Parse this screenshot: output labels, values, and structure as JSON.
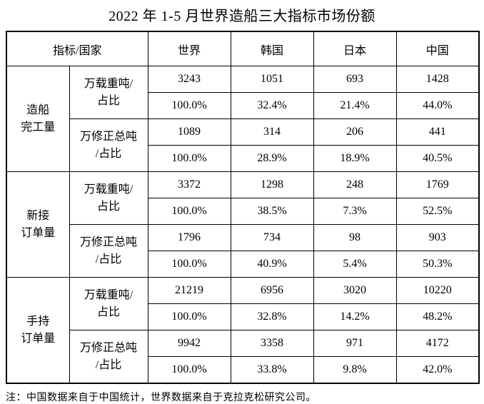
{
  "title": "2022 年 1-5 月世界造船三大指标市场份额",
  "note": "注：中国数据来自于中国统计，世界数据来自于克拉克松研究公司。",
  "colors": {
    "border": "#000000",
    "text": "#000000",
    "background": "#ffffff"
  },
  "table": {
    "corner_header": "指标/国家",
    "columns": [
      "世界",
      "韩国",
      "日本",
      "中国"
    ],
    "sections": [
      {
        "label1": "造船",
        "label2": "完工量",
        "metrics": [
          {
            "label1": "万载重吨/",
            "label2": "占比",
            "values": [
              "3243",
              "1051",
              "693",
              "1428"
            ],
            "shares": [
              "100.0%",
              "32.4%",
              "21.4%",
              "44.0%"
            ]
          },
          {
            "label1": "万修正总吨",
            "label2": "/占比",
            "values": [
              "1089",
              "314",
              "206",
              "441"
            ],
            "shares": [
              "100.0%",
              "28.9%",
              "18.9%",
              "40.5%"
            ]
          }
        ]
      },
      {
        "label1": "新接",
        "label2": "订单量",
        "metrics": [
          {
            "label1": "万载重吨/",
            "label2": "占比",
            "values": [
              "3372",
              "1298",
              "248",
              "1769"
            ],
            "shares": [
              "100.0%",
              "38.5%",
              "7.3%",
              "52.5%"
            ]
          },
          {
            "label1": "万修正总吨",
            "label2": "/占比",
            "values": [
              "1796",
              "734",
              "98",
              "903"
            ],
            "shares": [
              "100.0%",
              "40.9%",
              "5.4%",
              "50.3%"
            ]
          }
        ]
      },
      {
        "label1": "手持",
        "label2": "订单量",
        "metrics": [
          {
            "label1": "万载重吨/",
            "label2": "占比",
            "values": [
              "21219",
              "6956",
              "3020",
              "10220"
            ],
            "shares": [
              "100.0%",
              "32.8%",
              "14.2%",
              "48.2%"
            ]
          },
          {
            "label1": "万修正总吨",
            "label2": "/占比",
            "values": [
              "9942",
              "3358",
              "971",
              "4172"
            ],
            "shares": [
              "100.0%",
              "33.8%",
              "9.8%",
              "42.0%"
            ]
          }
        ]
      }
    ]
  }
}
